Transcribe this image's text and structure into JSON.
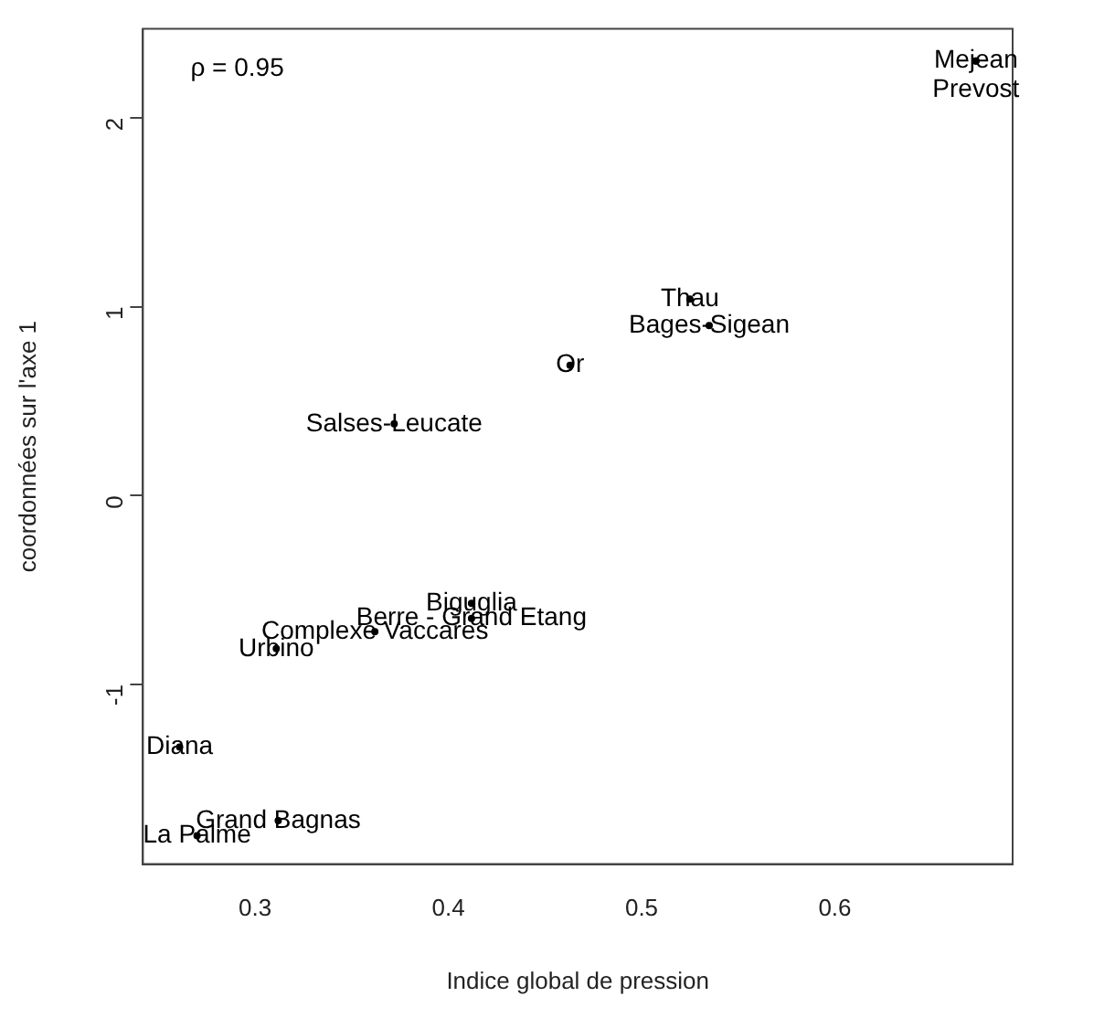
{
  "chart_data": {
    "type": "scatter",
    "xlabel": "Indice global de pression",
    "ylabel": "coordonnées sur l'axe 1",
    "grid": false,
    "legend": false,
    "x": [
      0.673,
      0.673,
      0.525,
      0.535,
      0.463,
      0.372,
      0.412,
      0.412,
      0.362,
      0.311,
      0.261,
      0.312,
      0.27
    ],
    "series": [
      {
        "color": "#000000",
        "values": [
          2.3,
          2.3,
          1.04,
          0.9,
          0.69,
          0.38,
          -0.57,
          -0.65,
          -0.72,
          -0.81,
          -1.33,
          -1.72,
          -1.8
        ],
        "value_labels": [
          "Mejean",
          "Prevost",
          "Thau",
          "Bages-Sigean",
          "Or",
          "Salses-Leucate",
          "Biguglia",
          "Berre - Grand Etang",
          "Complexe Vaccares",
          "Urbino",
          "Diana",
          "Grand Bagnas",
          "La Palme"
        ]
      }
    ],
    "xlim": [
      0.242,
      0.692
    ],
    "xticks": [
      0.3,
      0.4,
      0.5,
      0.6
    ],
    "ylim": [
      -1.95,
      2.47
    ],
    "yticks": [
      -1,
      0,
      1,
      2
    ],
    "annotations": [
      "ρ = 0.95"
    ]
  }
}
